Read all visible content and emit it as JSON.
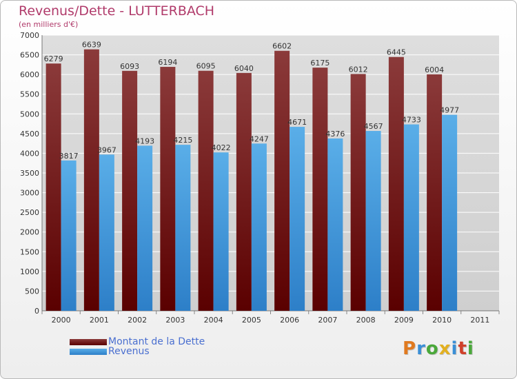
{
  "chart_data": {
    "type": "bar",
    "title": "Revenus/Dette - LUTTERBACH",
    "subtitle": "(en milliers d'€)",
    "categories": [
      "2000",
      "2001",
      "2002",
      "2003",
      "2004",
      "2005",
      "2006",
      "2007",
      "2008",
      "2009",
      "2010",
      "2011"
    ],
    "series": [
      {
        "name": "Montant de la Dette",
        "values": [
          6279,
          6639,
          6093,
          6194,
          6095,
          6040,
          6602,
          6175,
          6012,
          6445,
          6004,
          null
        ]
      },
      {
        "name": "Revenus",
        "values": [
          3817,
          3967,
          4193,
          4215,
          4022,
          4247,
          4671,
          4376,
          4567,
          4733,
          4977,
          null
        ]
      }
    ],
    "ylim": [
      0,
      7000
    ],
    "yticks": [
      0,
      500,
      1000,
      1500,
      2000,
      2500,
      3000,
      3500,
      4000,
      4500,
      5000,
      5500,
      6000,
      6500,
      7000
    ],
    "grid": true,
    "legend_position": "bottom-left"
  },
  "colors": {
    "title": "#b03a6a",
    "debt_top": "#8b3a3a",
    "debt_bottom": "#5a0000",
    "rev_top": "#5aaee8",
    "rev_bottom": "#2d7fc8",
    "grid": "#ffffff",
    "legend_text": "#4a6fd0"
  },
  "logo": {
    "letters": [
      "P",
      "r",
      "o",
      "x",
      "i",
      "t",
      "i"
    ],
    "colors": [
      "#e07a20",
      "#3a8fd6",
      "#4aa83a",
      "#e2b020",
      "#3a8fd6",
      "#d0402a",
      "#4aa83a"
    ]
  }
}
